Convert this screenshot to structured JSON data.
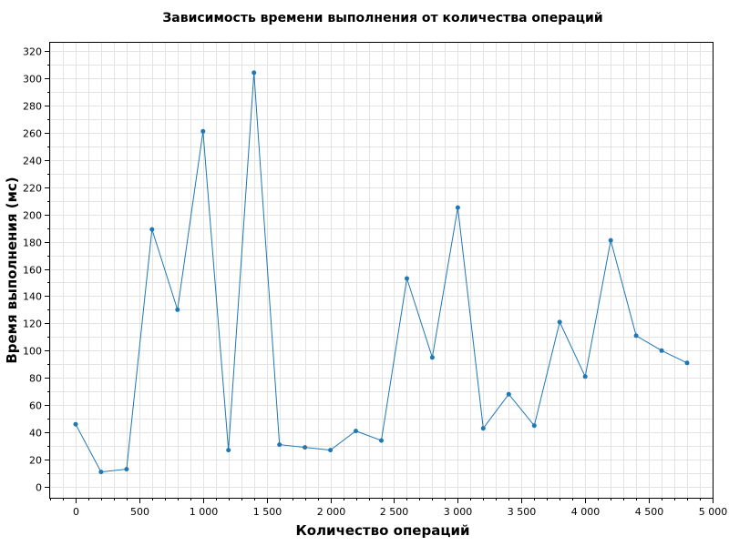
{
  "chart_data": {
    "type": "line",
    "title": "Зависимость времени выполнения от количества операций",
    "xlabel": "Количество операций",
    "ylabel": "Время выполнения (мс)",
    "xlim": [
      -200,
      5000
    ],
    "ylim": [
      -8,
      326
    ],
    "x_ticks": [
      0,
      500,
      1000,
      1500,
      2000,
      2500,
      3000,
      3500,
      4000,
      4500,
      5000
    ],
    "x_tick_labels": [
      "0",
      "500",
      "1 000",
      "1 500",
      "2 000",
      "2 500",
      "3 000",
      "3 500",
      "4 000",
      "4 500",
      "5 000"
    ],
    "y_ticks": [
      0,
      20,
      40,
      60,
      80,
      100,
      120,
      140,
      160,
      180,
      200,
      220,
      240,
      260,
      280,
      300,
      320
    ],
    "y_tick_labels": [
      "0",
      "20",
      "40",
      "60",
      "80",
      "100",
      "120",
      "140",
      "160",
      "180",
      "200",
      "220",
      "240",
      "260",
      "280",
      "300",
      "320"
    ],
    "grid": true,
    "legend": "none",
    "series": [
      {
        "color": "#1f77b4",
        "x": [
          0,
          200,
          400,
          600,
          800,
          1000,
          1200,
          1400,
          1600,
          1800,
          2000,
          2200,
          2400,
          2600,
          2800,
          3000,
          3200,
          3400,
          3600,
          3800,
          4000,
          4200,
          4400,
          4600,
          4800
        ],
        "y": [
          46,
          11,
          13,
          189,
          130,
          261,
          27,
          304,
          31,
          29,
          27,
          41,
          34,
          153,
          95,
          205,
          43,
          68,
          45,
          121,
          81,
          181,
          111,
          100,
          91
        ]
      }
    ]
  }
}
